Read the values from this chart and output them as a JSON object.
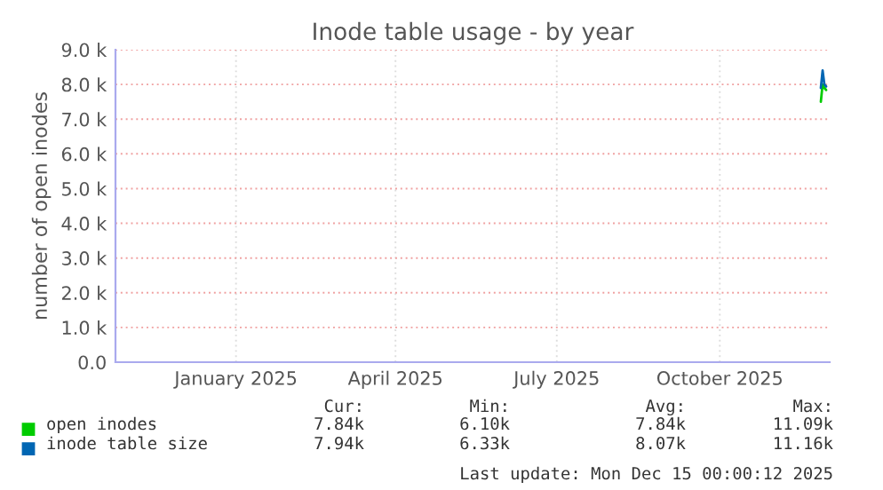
{
  "chart_data": {
    "type": "line",
    "title": "Inode table usage - by year",
    "ylabel": "number of open inodes",
    "xlim": [
      "2024-11-09",
      "2025-12-17"
    ],
    "ylim": [
      0,
      9000
    ],
    "xticks": [
      {
        "value": "2025-01-16",
        "label": "January 2025"
      },
      {
        "value": "2025-04-16",
        "label": "April 2025"
      },
      {
        "value": "2025-07-16",
        "label": "July 2025"
      },
      {
        "value": "2025-10-16",
        "label": "October 2025"
      }
    ],
    "yticks": [
      {
        "value": 0,
        "label": "0.0"
      },
      {
        "value": 1000,
        "label": "1.0 k"
      },
      {
        "value": 2000,
        "label": "2.0 k"
      },
      {
        "value": 3000,
        "label": "3.0 k"
      },
      {
        "value": 4000,
        "label": "4.0 k"
      },
      {
        "value": 5000,
        "label": "5.0 k"
      },
      {
        "value": 6000,
        "label": "6.0 k"
      },
      {
        "value": 7000,
        "label": "7.0 k"
      },
      {
        "value": 8000,
        "label": "8.0 k"
      },
      {
        "value": 9000,
        "label": "9.0 k"
      }
    ],
    "x": [
      "2025-12-12",
      "2025-12-13",
      "2025-12-14",
      "2025-12-15"
    ],
    "series": [
      {
        "name": "open inodes",
        "color": "#00cc00",
        "values": [
          7500,
          8000,
          7900,
          7840
        ]
      },
      {
        "name": "inode table size",
        "color": "#0066b3",
        "values": [
          7900,
          8400,
          8000,
          7940
        ]
      }
    ],
    "grid": true,
    "legend": "bottom",
    "annotations": [
      "Cur:",
      "Min:",
      "Avg:",
      "Max:",
      "7.84k",
      "6.10k",
      "7.84k",
      "11.09k",
      "7.94k",
      "6.33k",
      "8.07k",
      "11.16k",
      "Last update: Mon Dec 15 00:00:12 2025"
    ]
  }
}
